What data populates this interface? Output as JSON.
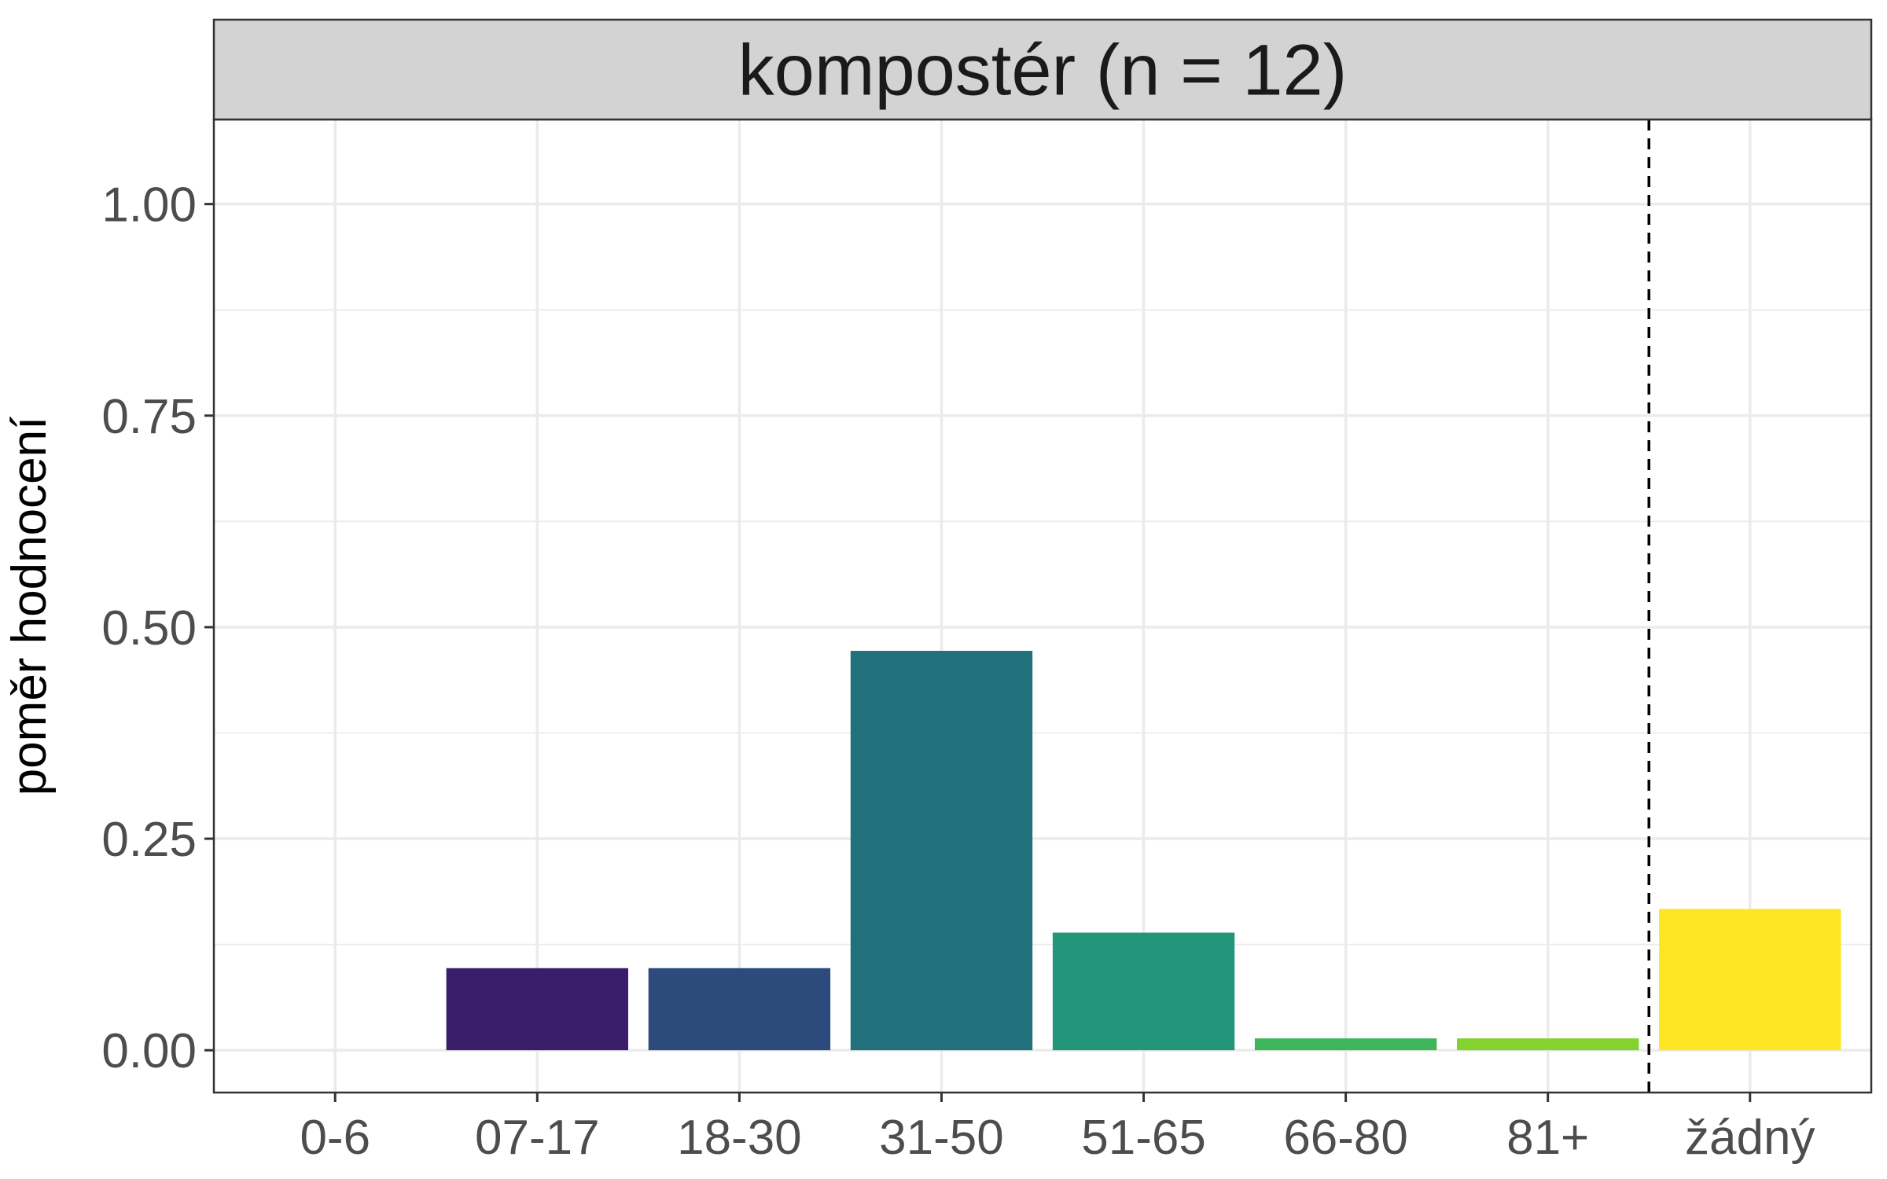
{
  "chart_data": {
    "type": "bar",
    "facet_title": "kompostér (n = 12)",
    "ylabel": "poměr hodnocení",
    "xlabel": "",
    "ylim": [
      -0.05,
      1.1
    ],
    "yticks": [
      0,
      0.25,
      0.5,
      0.75,
      1.0
    ],
    "ytick_labels": [
      "0.00",
      "0.25",
      "0.50",
      "0.75",
      "1.00"
    ],
    "grid": true,
    "legend": "none",
    "categories": [
      "0-6",
      "07-17",
      "18-30",
      "31-50",
      "51-65",
      "66-80",
      "81+",
      "žádný"
    ],
    "values": [
      0,
      0.097,
      0.097,
      0.472,
      0.139,
      0.014,
      0.014,
      0.167
    ],
    "colors": [
      "#440154",
      "#3B1E6B",
      "#2C4A7B",
      "#21707C",
      "#22957A",
      "#3EB559",
      "#84D22E",
      "#FDE725"
    ],
    "separator_after_category": "81+"
  }
}
